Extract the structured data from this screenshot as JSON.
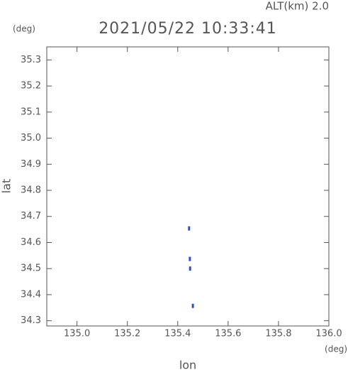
{
  "chart_data": {
    "type": "scatter",
    "title": "2021/05/22 10:33:41",
    "annotation": "ALT(km) 2.0",
    "y_unit": "(deg)",
    "x_unit": "(deg)",
    "xlabel": "lon",
    "ylabel": "lat",
    "x": [
      135.445,
      135.448,
      135.449,
      135.46
    ],
    "values": [
      34.654,
      34.537,
      34.5,
      34.357
    ],
    "color": "#2a4fd6",
    "xlim": [
      134.88,
      136.0
    ],
    "ylim": [
      34.28,
      35.35
    ],
    "xticks": [
      {
        "value": 135.0,
        "label": "135.0"
      },
      135.2,
      135.4,
      135.6,
      135.8,
      {
        "value": 136.0,
        "label": "136.0"
      }
    ],
    "yticks": [
      34.3,
      34.4,
      34.5,
      34.6,
      34.7,
      34.8,
      34.9,
      {
        "value": 35.0,
        "label": "35.0"
      },
      35.1,
      35.2,
      35.3
    ],
    "grid": false
  }
}
